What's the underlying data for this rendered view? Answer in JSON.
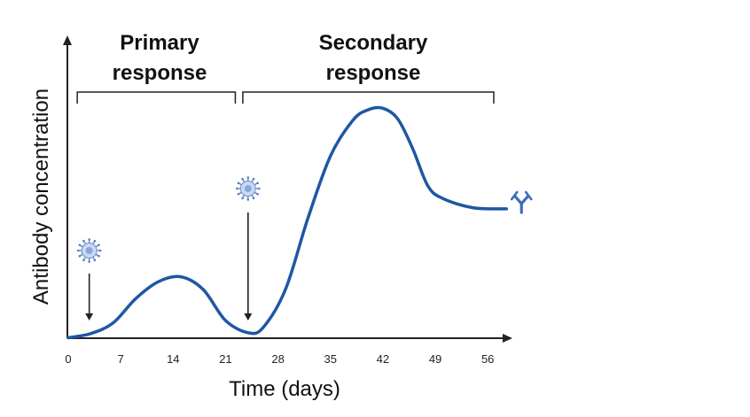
{
  "chart_data": {
    "type": "line",
    "xlabel": "Time (days)",
    "ylabel": "Antibody concentration",
    "x_ticks": [
      0,
      7,
      14,
      21,
      28,
      35,
      42,
      49,
      56
    ],
    "x_tick_labels": [
      "0",
      "7",
      "14",
      "21",
      "28",
      "35",
      "42",
      "49",
      "56"
    ],
    "xlim": [
      0,
      60
    ],
    "ylim": [
      0,
      100
    ],
    "y_ticks_shown": false,
    "grid": false,
    "series": [
      {
        "values_x": [
          0,
          3,
          6,
          9,
          12,
          15,
          18,
          21,
          24,
          26,
          29,
          32,
          35,
          38,
          40,
          42,
          44,
          46,
          48,
          50,
          54,
          58.5
        ],
        "values_y": [
          0,
          1.8,
          6.5,
          17,
          24.3,
          26.5,
          21,
          7.5,
          2.2,
          4.4,
          21,
          52,
          79,
          94.5,
          99,
          99.7,
          95,
          82,
          66,
          60.5,
          56.5,
          56
        ],
        "color": "#1f57a4"
      }
    ],
    "annotations": {
      "primary": {
        "label_line1": "Primary",
        "label_line2": "response",
        "x_start": 1.2,
        "x_end": 22.3
      },
      "secondary": {
        "label_line1": "Secondary",
        "label_line2": "response",
        "x_start": 23.3,
        "x_end": 56.8
      },
      "antigen_exposures": [
        {
          "x": 2.8,
          "name": "first exposure"
        },
        {
          "x": 24.0,
          "name": "second exposure"
        }
      ],
      "antibody_icon": {
        "x": 60.5
      }
    }
  },
  "colors": {
    "curve": "#1f57a4",
    "axis": "#222222",
    "antigen_fill": "#c9d9f2",
    "antigen_core": "#8aa8d9",
    "antibody": "#3b6cb8"
  }
}
